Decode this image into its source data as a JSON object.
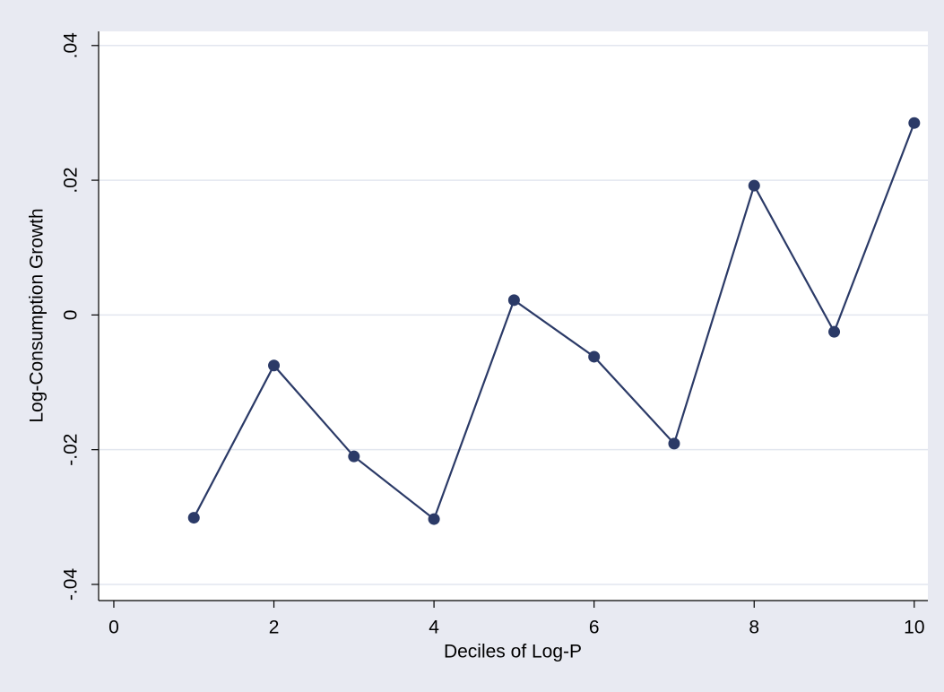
{
  "chart_data": {
    "type": "line",
    "x_label": "Deciles of Log-P",
    "y_label": "Log-Consumption Growth",
    "x": [
      1,
      2,
      3,
      4,
      5,
      6,
      7,
      8,
      9,
      10
    ],
    "series": [
      {
        "color": "#2b3a67",
        "values": [
          -0.0301,
          -0.0075,
          -0.021,
          -0.0303,
          0.0022,
          -0.0062,
          -0.0191,
          0.0192,
          -0.0025,
          0.0285
        ]
      }
    ],
    "xlim": [
      -0.19,
      10.17
    ],
    "ylim": [
      -0.0424,
      0.0421
    ],
    "xticks": [
      0,
      2,
      4,
      6,
      8,
      10
    ],
    "yticks": [
      {
        "value": -0.04,
        "label": "-.04"
      },
      {
        "value": -0.02,
        "label": "-.02"
      },
      0,
      {
        "value": 0.02,
        "label": ".02"
      },
      {
        "value": 0.04,
        "label": ".04"
      }
    ],
    "grid": true
  }
}
